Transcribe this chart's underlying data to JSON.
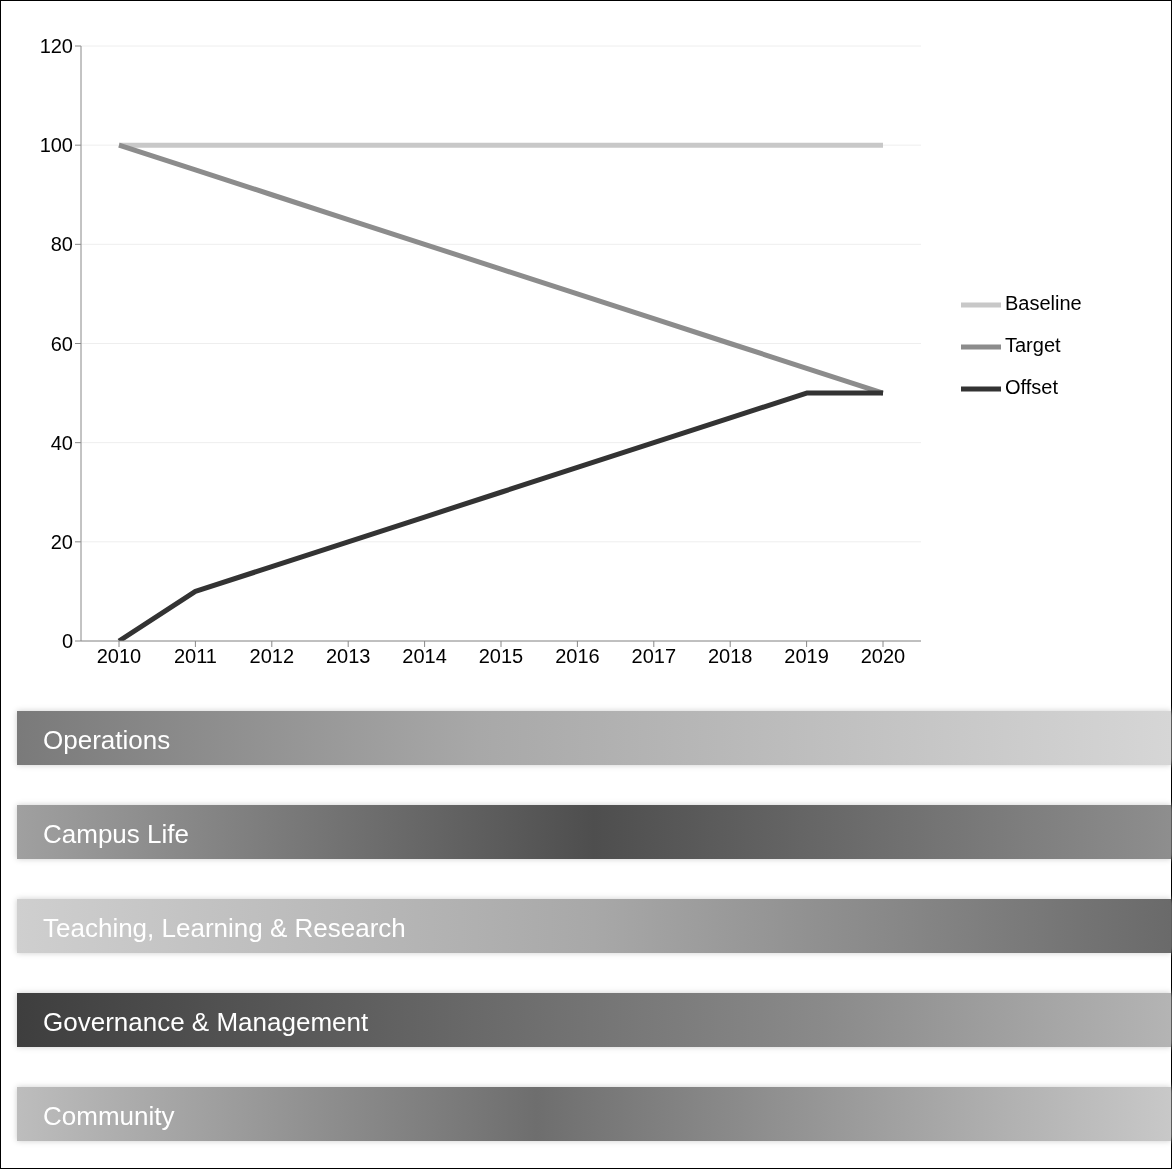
{
  "chart_data": {
    "type": "line",
    "categories": [
      "2010",
      "2011",
      "2012",
      "2013",
      "2014",
      "2015",
      "2016",
      "2017",
      "2018",
      "2019",
      "2020"
    ],
    "series": [
      {
        "name": "Baseline",
        "color": "#c8c8c8",
        "values": [
          100,
          100,
          100,
          100,
          100,
          100,
          100,
          100,
          100,
          100,
          100
        ]
      },
      {
        "name": "Target",
        "color": "#8c8c8c",
        "values": [
          100,
          95,
          90,
          85,
          80,
          75,
          70,
          65,
          60,
          55,
          50
        ]
      },
      {
        "name": "Offset",
        "color": "#333333",
        "values": [
          0,
          10,
          15,
          20,
          25,
          30,
          35,
          40,
          45,
          50,
          50
        ]
      }
    ],
    "ylim": [
      0,
      120
    ],
    "yticks": [
      0,
      20,
      40,
      60,
      80,
      100,
      120
    ],
    "grid": "y",
    "legend": "right",
    "marker": "none",
    "line_style": "solid",
    "annotations": [
      "Operations",
      "Campus Life",
      "Teaching, Learning & Research",
      "Governance & Management",
      "Community"
    ]
  }
}
